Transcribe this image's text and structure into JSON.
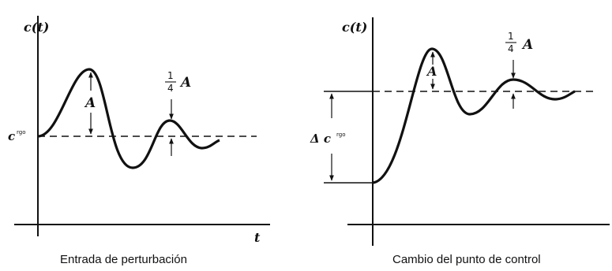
{
  "left_panel": {
    "y_axis_label": "c(t)",
    "x_axis_label": "t",
    "setpoint_label": "c",
    "setpoint_sup": "rgo",
    "amplitude_label": "A",
    "quarter_num": "1",
    "quarter_den": "4",
    "quarter_label": "A",
    "caption": "Entrada de perturbación"
  },
  "right_panel": {
    "y_axis_label": "c(t)",
    "delta_label": "Δ c",
    "delta_sup": "rgo",
    "amplitude_label": "A",
    "quarter_num": "1",
    "quarter_den": "4",
    "quarter_label": "A",
    "caption": "Cambio del punto de control"
  }
}
